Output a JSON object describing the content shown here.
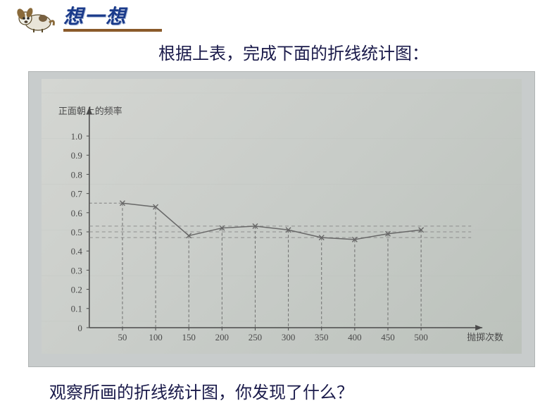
{
  "header": {
    "title": "想一想"
  },
  "instruction_top": "根据上表，完成下面的折线统计图：",
  "instruction_bottom": "观察所画的折线统计图，你发现了什么？",
  "chart": {
    "type": "line",
    "y_axis_label": "正面朝上的频率",
    "x_axis_label": "抛掷次数",
    "background_color": "#c8cccc",
    "inner_bg_gradient_start": "#d4d6d2",
    "inner_bg_gradient_end": "#bcc2bc",
    "axis_color": "#4a4a4a",
    "data_line_color": "#686868",
    "reference_line_color": "#888888",
    "vertical_dash_color": "#606060",
    "text_color": "#4a4a4a",
    "tick_fontsize": 13,
    "label_fontsize": 14,
    "x_values": [
      50,
      100,
      150,
      200,
      250,
      300,
      350,
      400,
      450,
      500
    ],
    "y_values": [
      0.65,
      0.63,
      0.48,
      0.52,
      0.53,
      0.51,
      0.47,
      0.46,
      0.49,
      0.51
    ],
    "x_ticks": [
      50,
      100,
      150,
      200,
      250,
      300,
      350,
      400,
      450,
      500
    ],
    "y_ticks": [
      0,
      0.1,
      0.2,
      0.3,
      0.4,
      0.5,
      0.6,
      0.7,
      0.8,
      0.9,
      1.0
    ],
    "xlim": [
      0,
      550
    ],
    "ylim": [
      0,
      1.1
    ],
    "reference_lines": [
      0.47,
      0.5,
      0.53
    ],
    "marker_style": "x",
    "line_width": 1.5
  }
}
